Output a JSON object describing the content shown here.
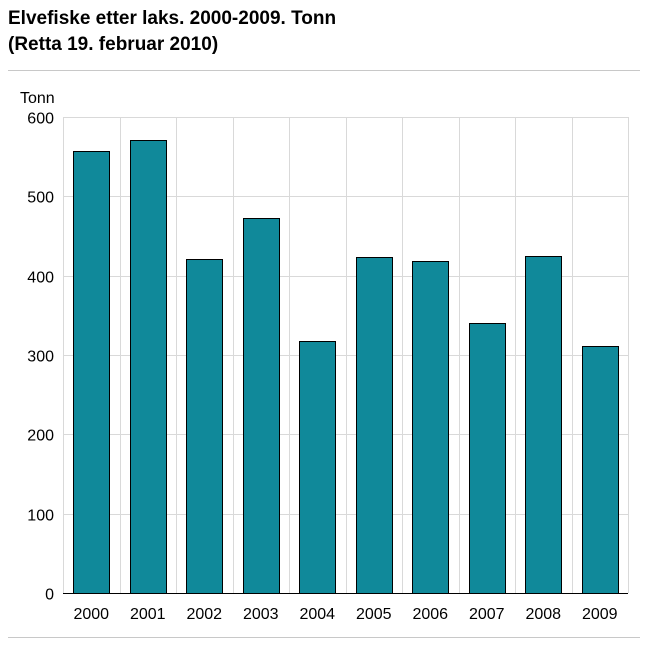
{
  "chart_data": {
    "type": "bar",
    "title": "Elvefiske etter laks. 2000-2009. Tonn",
    "subtitle": "(Retta 19. februar 2010)",
    "ylabel": "Tonn",
    "xlabel": "",
    "categories": [
      "2000",
      "2001",
      "2002",
      "2003",
      "2004",
      "2005",
      "2006",
      "2007",
      "2008",
      "2009"
    ],
    "values": [
      557,
      571,
      421,
      473,
      318,
      424,
      419,
      340,
      425,
      311
    ],
    "ylim": [
      0,
      600
    ],
    "yticks": [
      0,
      100,
      200,
      300,
      400,
      500,
      600
    ],
    "grid": true,
    "legend": "none",
    "colors": {
      "bar_fill": "#10899a",
      "bar_stroke": "#000000",
      "grid": "#d9d9d9",
      "axis": "#000000"
    }
  }
}
